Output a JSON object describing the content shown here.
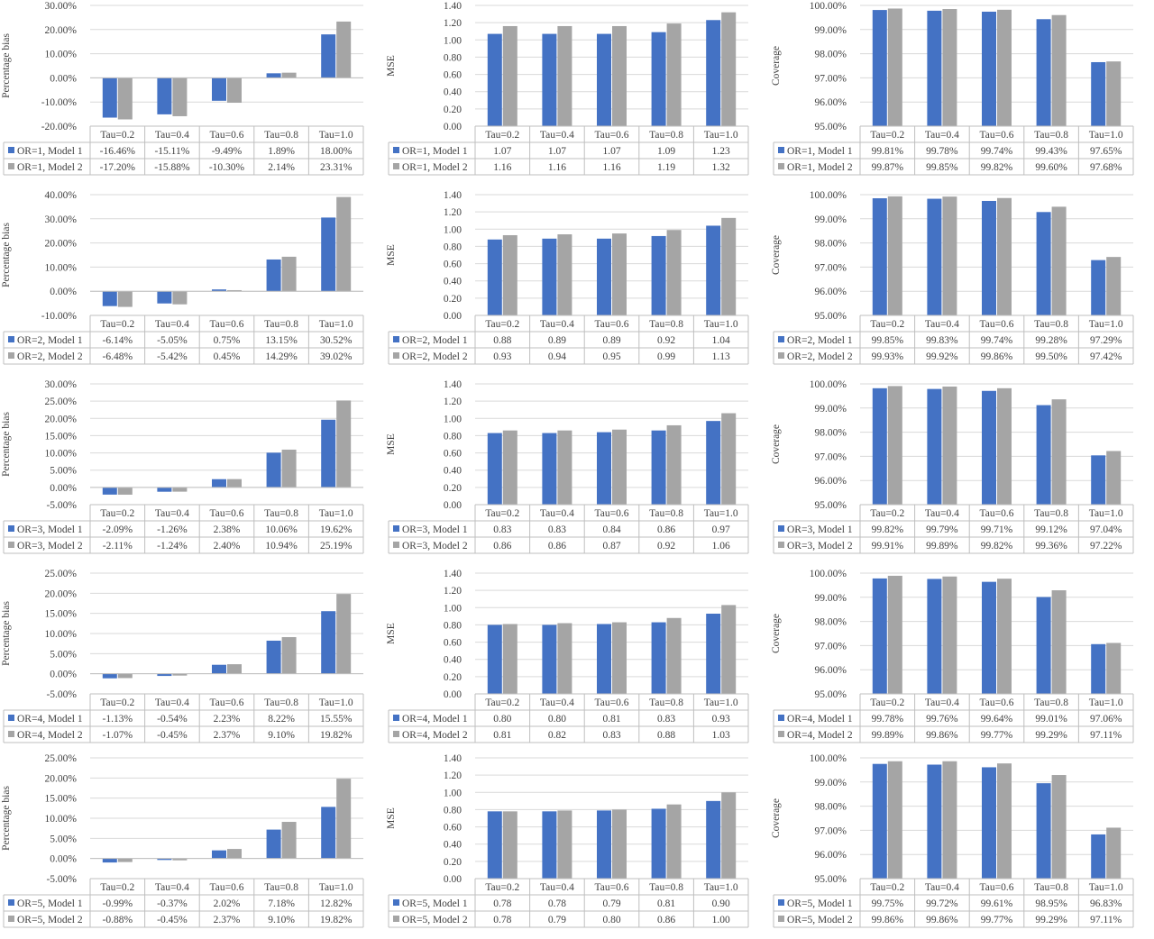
{
  "colors": {
    "model1": "#4472C4",
    "model2": "#A5A5A5",
    "gridline": "#D9D9D9",
    "text": "#404040"
  },
  "chart_data": [
    {
      "type": "bar",
      "ylabel": "Percentage bias",
      "yunit": "percent",
      "ylim": [
        -20,
        30
      ],
      "yticks": [
        -20,
        -10,
        0,
        10,
        20,
        30
      ],
      "tick_labels": [
        "-20.00%",
        "-10.00%",
        "0.00%",
        "10.00%",
        "20.00%",
        "30.00%"
      ],
      "categories": [
        "Tau=0.2",
        "Tau=0.4",
        "Tau=0.6",
        "Tau=0.8",
        "Tau=1.0"
      ],
      "series": [
        {
          "name": "OR=1, Model 1",
          "values": [
            -16.46,
            -15.11,
            -9.49,
            1.89,
            18.0
          ],
          "labels": [
            "-16.46%",
            "-15.11%",
            "-9.49%",
            "1.89%",
            "18.00%"
          ]
        },
        {
          "name": "OR=1, Model 2",
          "values": [
            -17.2,
            -15.88,
            -10.3,
            2.14,
            23.31
          ],
          "labels": [
            "-17.20%",
            "-15.88%",
            "-10.30%",
            "2.14%",
            "23.31%"
          ]
        }
      ]
    },
    {
      "type": "bar",
      "ylabel": "MSE",
      "yunit": "number",
      "ylim": [
        0,
        1.4
      ],
      "yticks": [
        0,
        0.2,
        0.4,
        0.6,
        0.8,
        1.0,
        1.2,
        1.4
      ],
      "tick_labels": [
        "0.00",
        "0.20",
        "0.40",
        "0.60",
        "0.80",
        "1.00",
        "1.20",
        "1.40"
      ],
      "categories": [
        "Tau=0.2",
        "Tau=0.4",
        "Tau=0.6",
        "Tau=0.8",
        "Tau=1.0"
      ],
      "series": [
        {
          "name": "OR=1, Model 1",
          "values": [
            1.07,
            1.07,
            1.07,
            1.09,
            1.23
          ],
          "labels": [
            "1.07",
            "1.07",
            "1.07",
            "1.09",
            "1.23"
          ]
        },
        {
          "name": "OR=1, Model 2",
          "values": [
            1.16,
            1.16,
            1.16,
            1.19,
            1.32
          ],
          "labels": [
            "1.16",
            "1.16",
            "1.16",
            "1.19",
            "1.32"
          ]
        }
      ]
    },
    {
      "type": "bar",
      "ylabel": "Coverage",
      "yunit": "percent",
      "ylim": [
        95,
        100
      ],
      "yticks": [
        95,
        96,
        97,
        98,
        99,
        100
      ],
      "tick_labels": [
        "95.00%",
        "96.00%",
        "97.00%",
        "98.00%",
        "99.00%",
        "100.00%"
      ],
      "categories": [
        "Tau=0.2",
        "Tau=0.4",
        "Tau=0.6",
        "Tau=0.8",
        "Tau=1.0"
      ],
      "series": [
        {
          "name": "OR=1, Model 1",
          "values": [
            99.81,
            99.78,
            99.74,
            99.43,
            97.65
          ],
          "labels": [
            "99.81%",
            "99.78%",
            "99.74%",
            "99.43%",
            "97.65%"
          ]
        },
        {
          "name": "OR=1, Model 2",
          "values": [
            99.87,
            99.85,
            99.82,
            99.6,
            97.68
          ],
          "labels": [
            "99.87%",
            "99.85%",
            "99.82%",
            "99.60%",
            "97.68%"
          ]
        }
      ]
    },
    {
      "type": "bar",
      "ylabel": "Percentage bias",
      "yunit": "percent",
      "ylim": [
        -10,
        40
      ],
      "yticks": [
        -10,
        0,
        10,
        20,
        30,
        40
      ],
      "tick_labels": [
        "-10.00%",
        "0.00%",
        "10.00%",
        "20.00%",
        "30.00%",
        "40.00%"
      ],
      "categories": [
        "Tau=0.2",
        "Tau=0.4",
        "Tau=0.6",
        "Tau=0.8",
        "Tau=1.0"
      ],
      "series": [
        {
          "name": "OR=2, Model 1",
          "values": [
            -6.14,
            -5.05,
            0.75,
            13.15,
            30.52
          ],
          "labels": [
            "-6.14%",
            "-5.05%",
            "0.75%",
            "13.15%",
            "30.52%"
          ]
        },
        {
          "name": "OR=2, Model 2",
          "values": [
            -6.48,
            -5.42,
            0.45,
            14.29,
            39.02
          ],
          "labels": [
            "-6.48%",
            "-5.42%",
            "0.45%",
            "14.29%",
            "39.02%"
          ]
        }
      ]
    },
    {
      "type": "bar",
      "ylabel": "MSE",
      "yunit": "number",
      "ylim": [
        0,
        1.4
      ],
      "yticks": [
        0,
        0.2,
        0.4,
        0.6,
        0.8,
        1.0,
        1.2,
        1.4
      ],
      "tick_labels": [
        "0.00",
        "0.20",
        "0.40",
        "0.60",
        "0.80",
        "1.00",
        "1.20",
        "1.40"
      ],
      "categories": [
        "Tau=0.2",
        "Tau=0.4",
        "Tau=0.6",
        "Tau=0.8",
        "Tau=1.0"
      ],
      "series": [
        {
          "name": "OR=2, Model 1",
          "values": [
            0.88,
            0.89,
            0.89,
            0.92,
            1.04
          ],
          "labels": [
            "0.88",
            "0.89",
            "0.89",
            "0.92",
            "1.04"
          ]
        },
        {
          "name": "OR=2, Model 2",
          "values": [
            0.93,
            0.94,
            0.95,
            0.99,
            1.13
          ],
          "labels": [
            "0.93",
            "0.94",
            "0.95",
            "0.99",
            "1.13"
          ]
        }
      ]
    },
    {
      "type": "bar",
      "ylabel": "Coverage",
      "yunit": "percent",
      "ylim": [
        95,
        100
      ],
      "yticks": [
        95,
        96,
        97,
        98,
        99,
        100
      ],
      "tick_labels": [
        "95.00%",
        "96.00%",
        "97.00%",
        "98.00%",
        "99.00%",
        "100.00%"
      ],
      "categories": [
        "Tau=0.2",
        "Tau=0.4",
        "Tau=0.6",
        "Tau=0.8",
        "Tau=1.0"
      ],
      "series": [
        {
          "name": "OR=2, Model 1",
          "values": [
            99.85,
            99.83,
            99.74,
            99.28,
            97.29
          ],
          "labels": [
            "99.85%",
            "99.83%",
            "99.74%",
            "99.28%",
            "97.29%"
          ]
        },
        {
          "name": "OR=2, Model 2",
          "values": [
            99.93,
            99.92,
            99.86,
            99.5,
            97.42
          ],
          "labels": [
            "99.93%",
            "99.92%",
            "99.86%",
            "99.50%",
            "97.42%"
          ]
        }
      ]
    },
    {
      "type": "bar",
      "ylabel": "Percentage bias",
      "yunit": "percent",
      "ylim": [
        -5,
        30
      ],
      "yticks": [
        -5,
        0,
        5,
        10,
        15,
        20,
        25,
        30
      ],
      "tick_labels": [
        "-5.00%",
        "0.00%",
        "5.00%",
        "10.00%",
        "15.00%",
        "20.00%",
        "25.00%",
        "30.00%"
      ],
      "categories": [
        "Tau=0.2",
        "Tau=0.4",
        "Tau=0.6",
        "Tau=0.8",
        "Tau=1.0"
      ],
      "series": [
        {
          "name": "OR=3, Model 1",
          "values": [
            -2.09,
            -1.26,
            2.38,
            10.06,
            19.62
          ],
          "labels": [
            "-2.09%",
            "-1.26%",
            "2.38%",
            "10.06%",
            "19.62%"
          ]
        },
        {
          "name": "OR=3, Model 2",
          "values": [
            -2.11,
            -1.24,
            2.4,
            10.94,
            25.19
          ],
          "labels": [
            "-2.11%",
            "-1.24%",
            "2.40%",
            "10.94%",
            "25.19%"
          ]
        }
      ]
    },
    {
      "type": "bar",
      "ylabel": "MSE",
      "yunit": "number",
      "ylim": [
        0,
        1.4
      ],
      "yticks": [
        0,
        0.2,
        0.4,
        0.6,
        0.8,
        1.0,
        1.2,
        1.4
      ],
      "tick_labels": [
        "0.00",
        "0.20",
        "0.40",
        "0.60",
        "0.80",
        "1.00",
        "1.20",
        "1.40"
      ],
      "categories": [
        "Tau=0.2",
        "Tau=0.4",
        "Tau=0.6",
        "Tau=0.8",
        "Tau=1.0"
      ],
      "series": [
        {
          "name": "OR=3, Model 1",
          "values": [
            0.83,
            0.83,
            0.84,
            0.86,
            0.97
          ],
          "labels": [
            "0.83",
            "0.83",
            "0.84",
            "0.86",
            "0.97"
          ]
        },
        {
          "name": "OR=3, Model 2",
          "values": [
            0.86,
            0.86,
            0.87,
            0.92,
            1.06
          ],
          "labels": [
            "0.86",
            "0.86",
            "0.87",
            "0.92",
            "1.06"
          ]
        }
      ]
    },
    {
      "type": "bar",
      "ylabel": "Coverage",
      "yunit": "percent",
      "ylim": [
        95,
        100
      ],
      "yticks": [
        95,
        96,
        97,
        98,
        99,
        100
      ],
      "tick_labels": [
        "95.00%",
        "96.00%",
        "97.00%",
        "98.00%",
        "99.00%",
        "100.00%"
      ],
      "categories": [
        "Tau=0.2",
        "Tau=0.4",
        "Tau=0.6",
        "Tau=0.8",
        "Tau=1.0"
      ],
      "series": [
        {
          "name": "OR=3, Model 1",
          "values": [
            99.82,
            99.79,
            99.71,
            99.12,
            97.04
          ],
          "labels": [
            "99.82%",
            "99.79%",
            "99.71%",
            "99.12%",
            "97.04%"
          ]
        },
        {
          "name": "OR=3, Model 2",
          "values": [
            99.91,
            99.89,
            99.82,
            99.36,
            97.22
          ],
          "labels": [
            "99.91%",
            "99.89%",
            "99.82%",
            "99.36%",
            "97.22%"
          ]
        }
      ]
    },
    {
      "type": "bar",
      "ylabel": "Percentage bias",
      "yunit": "percent",
      "ylim": [
        -5,
        25
      ],
      "yticks": [
        -5,
        0,
        5,
        10,
        15,
        20,
        25
      ],
      "tick_labels": [
        "-5.00%",
        "0.00%",
        "5.00%",
        "10.00%",
        "15.00%",
        "20.00%",
        "25.00%"
      ],
      "categories": [
        "Tau=0.2",
        "Tau=0.4",
        "Tau=0.6",
        "Tau=0.8",
        "Tau=1.0"
      ],
      "series": [
        {
          "name": "OR=4, Model 1",
          "values": [
            -1.13,
            -0.54,
            2.23,
            8.22,
            15.55
          ],
          "labels": [
            "-1.13%",
            "-0.54%",
            "2.23%",
            "8.22%",
            "15.55%"
          ]
        },
        {
          "name": "OR=4, Model 2",
          "values": [
            -1.07,
            -0.45,
            2.37,
            9.1,
            19.82
          ],
          "labels": [
            "-1.07%",
            "-0.45%",
            "2.37%",
            "9.10%",
            "19.82%"
          ]
        }
      ]
    },
    {
      "type": "bar",
      "ylabel": "MSE",
      "yunit": "number",
      "ylim": [
        0,
        1.4
      ],
      "yticks": [
        0,
        0.2,
        0.4,
        0.6,
        0.8,
        1.0,
        1.2,
        1.4
      ],
      "tick_labels": [
        "0.00",
        "0.20",
        "0.40",
        "0.60",
        "0.80",
        "1.00",
        "1.20",
        "1.40"
      ],
      "categories": [
        "Tau=0.2",
        "Tau=0.4",
        "Tau=0.6",
        "Tau=0.8",
        "Tau=1.0"
      ],
      "series": [
        {
          "name": "OR=4, Model 1",
          "values": [
            0.8,
            0.8,
            0.81,
            0.83,
            0.93
          ],
          "labels": [
            "0.80",
            "0.80",
            "0.81",
            "0.83",
            "0.93"
          ]
        },
        {
          "name": "OR=4, Model 2",
          "values": [
            0.81,
            0.82,
            0.83,
            0.88,
            1.03
          ],
          "labels": [
            "0.81",
            "0.82",
            "0.83",
            "0.88",
            "1.03"
          ]
        }
      ]
    },
    {
      "type": "bar",
      "ylabel": "Coverage",
      "yunit": "percent",
      "ylim": [
        95,
        100
      ],
      "yticks": [
        95,
        96,
        97,
        98,
        99,
        100
      ],
      "tick_labels": [
        "95.00%",
        "96.00%",
        "97.00%",
        "98.00%",
        "99.00%",
        "100.00%"
      ],
      "categories": [
        "Tau=0.2",
        "Tau=0.4",
        "Tau=0.6",
        "Tau=0.8",
        "Tau=1.0"
      ],
      "series": [
        {
          "name": "OR=4, Model 1",
          "values": [
            99.78,
            99.76,
            99.64,
            99.01,
            97.06
          ],
          "labels": [
            "99.78%",
            "99.76%",
            "99.64%",
            "99.01%",
            "97.06%"
          ]
        },
        {
          "name": "OR=4, Model 2",
          "values": [
            99.89,
            99.86,
            99.77,
            99.29,
            97.11
          ],
          "labels": [
            "99.89%",
            "99.86%",
            "99.77%",
            "99.29%",
            "97.11%"
          ]
        }
      ]
    },
    {
      "type": "bar",
      "ylabel": "Percentage bias",
      "yunit": "percent",
      "ylim": [
        -5,
        25
      ],
      "yticks": [
        -5,
        0,
        5,
        10,
        15,
        20,
        25
      ],
      "tick_labels": [
        "-5.00%",
        "0.00%",
        "5.00%",
        "10.00%",
        "15.00%",
        "20.00%",
        "25.00%"
      ],
      "categories": [
        "Tau=0.2",
        "Tau=0.4",
        "Tau=0.6",
        "Tau=0.8",
        "Tau=1.0"
      ],
      "series": [
        {
          "name": "OR=5, Model 1",
          "values": [
            -0.99,
            -0.37,
            2.02,
            7.18,
            12.82
          ],
          "labels": [
            "-0.99%",
            "-0.37%",
            "2.02%",
            "7.18%",
            "12.82%"
          ]
        },
        {
          "name": "OR=5, Model 2",
          "values": [
            -0.88,
            -0.45,
            2.37,
            9.1,
            19.82
          ],
          "labels": [
            "-0.88%",
            "-0.45%",
            "2.37%",
            "9.10%",
            "19.82%"
          ]
        }
      ]
    },
    {
      "type": "bar",
      "ylabel": "MSE",
      "yunit": "number",
      "ylim": [
        0,
        1.4
      ],
      "yticks": [
        0,
        0.2,
        0.4,
        0.6,
        0.8,
        1.0,
        1.2,
        1.4
      ],
      "tick_labels": [
        "0.00",
        "0.20",
        "0.40",
        "0.60",
        "0.80",
        "1.00",
        "1.20",
        "1.40"
      ],
      "categories": [
        "Tau=0.2",
        "Tau=0.4",
        "Tau=0.6",
        "Tau=0.8",
        "Tau=1.0"
      ],
      "series": [
        {
          "name": "OR=5, Model 1",
          "values": [
            0.78,
            0.78,
            0.79,
            0.81,
            0.9
          ],
          "labels": [
            "0.78",
            "0.78",
            "0.79",
            "0.81",
            "0.90"
          ]
        },
        {
          "name": "OR=5, Model 2",
          "values": [
            0.78,
            0.79,
            0.8,
            0.86,
            1.0
          ],
          "labels": [
            "0.78",
            "0.79",
            "0.80",
            "0.86",
            "1.00"
          ]
        }
      ]
    },
    {
      "type": "bar",
      "ylabel": "Coverage",
      "yunit": "percent",
      "ylim": [
        95,
        100
      ],
      "yticks": [
        95,
        96,
        97,
        98,
        99,
        100
      ],
      "tick_labels": [
        "95.00%",
        "96.00%",
        "97.00%",
        "98.00%",
        "99.00%",
        "100.00%"
      ],
      "categories": [
        "Tau=0.2",
        "Tau=0.4",
        "Tau=0.6",
        "Tau=0.8",
        "Tau=1.0"
      ],
      "series": [
        {
          "name": "OR=5, Model 1",
          "values": [
            99.75,
            99.72,
            99.61,
            98.95,
            96.83
          ],
          "labels": [
            "99.75%",
            "99.72%",
            "99.61%",
            "98.95%",
            "96.83%"
          ]
        },
        {
          "name": "OR=5, Model 2",
          "values": [
            99.86,
            99.86,
            99.77,
            99.29,
            97.11
          ],
          "labels": [
            "99.86%",
            "99.86%",
            "99.77%",
            "99.29%",
            "97.11%"
          ]
        }
      ]
    }
  ]
}
